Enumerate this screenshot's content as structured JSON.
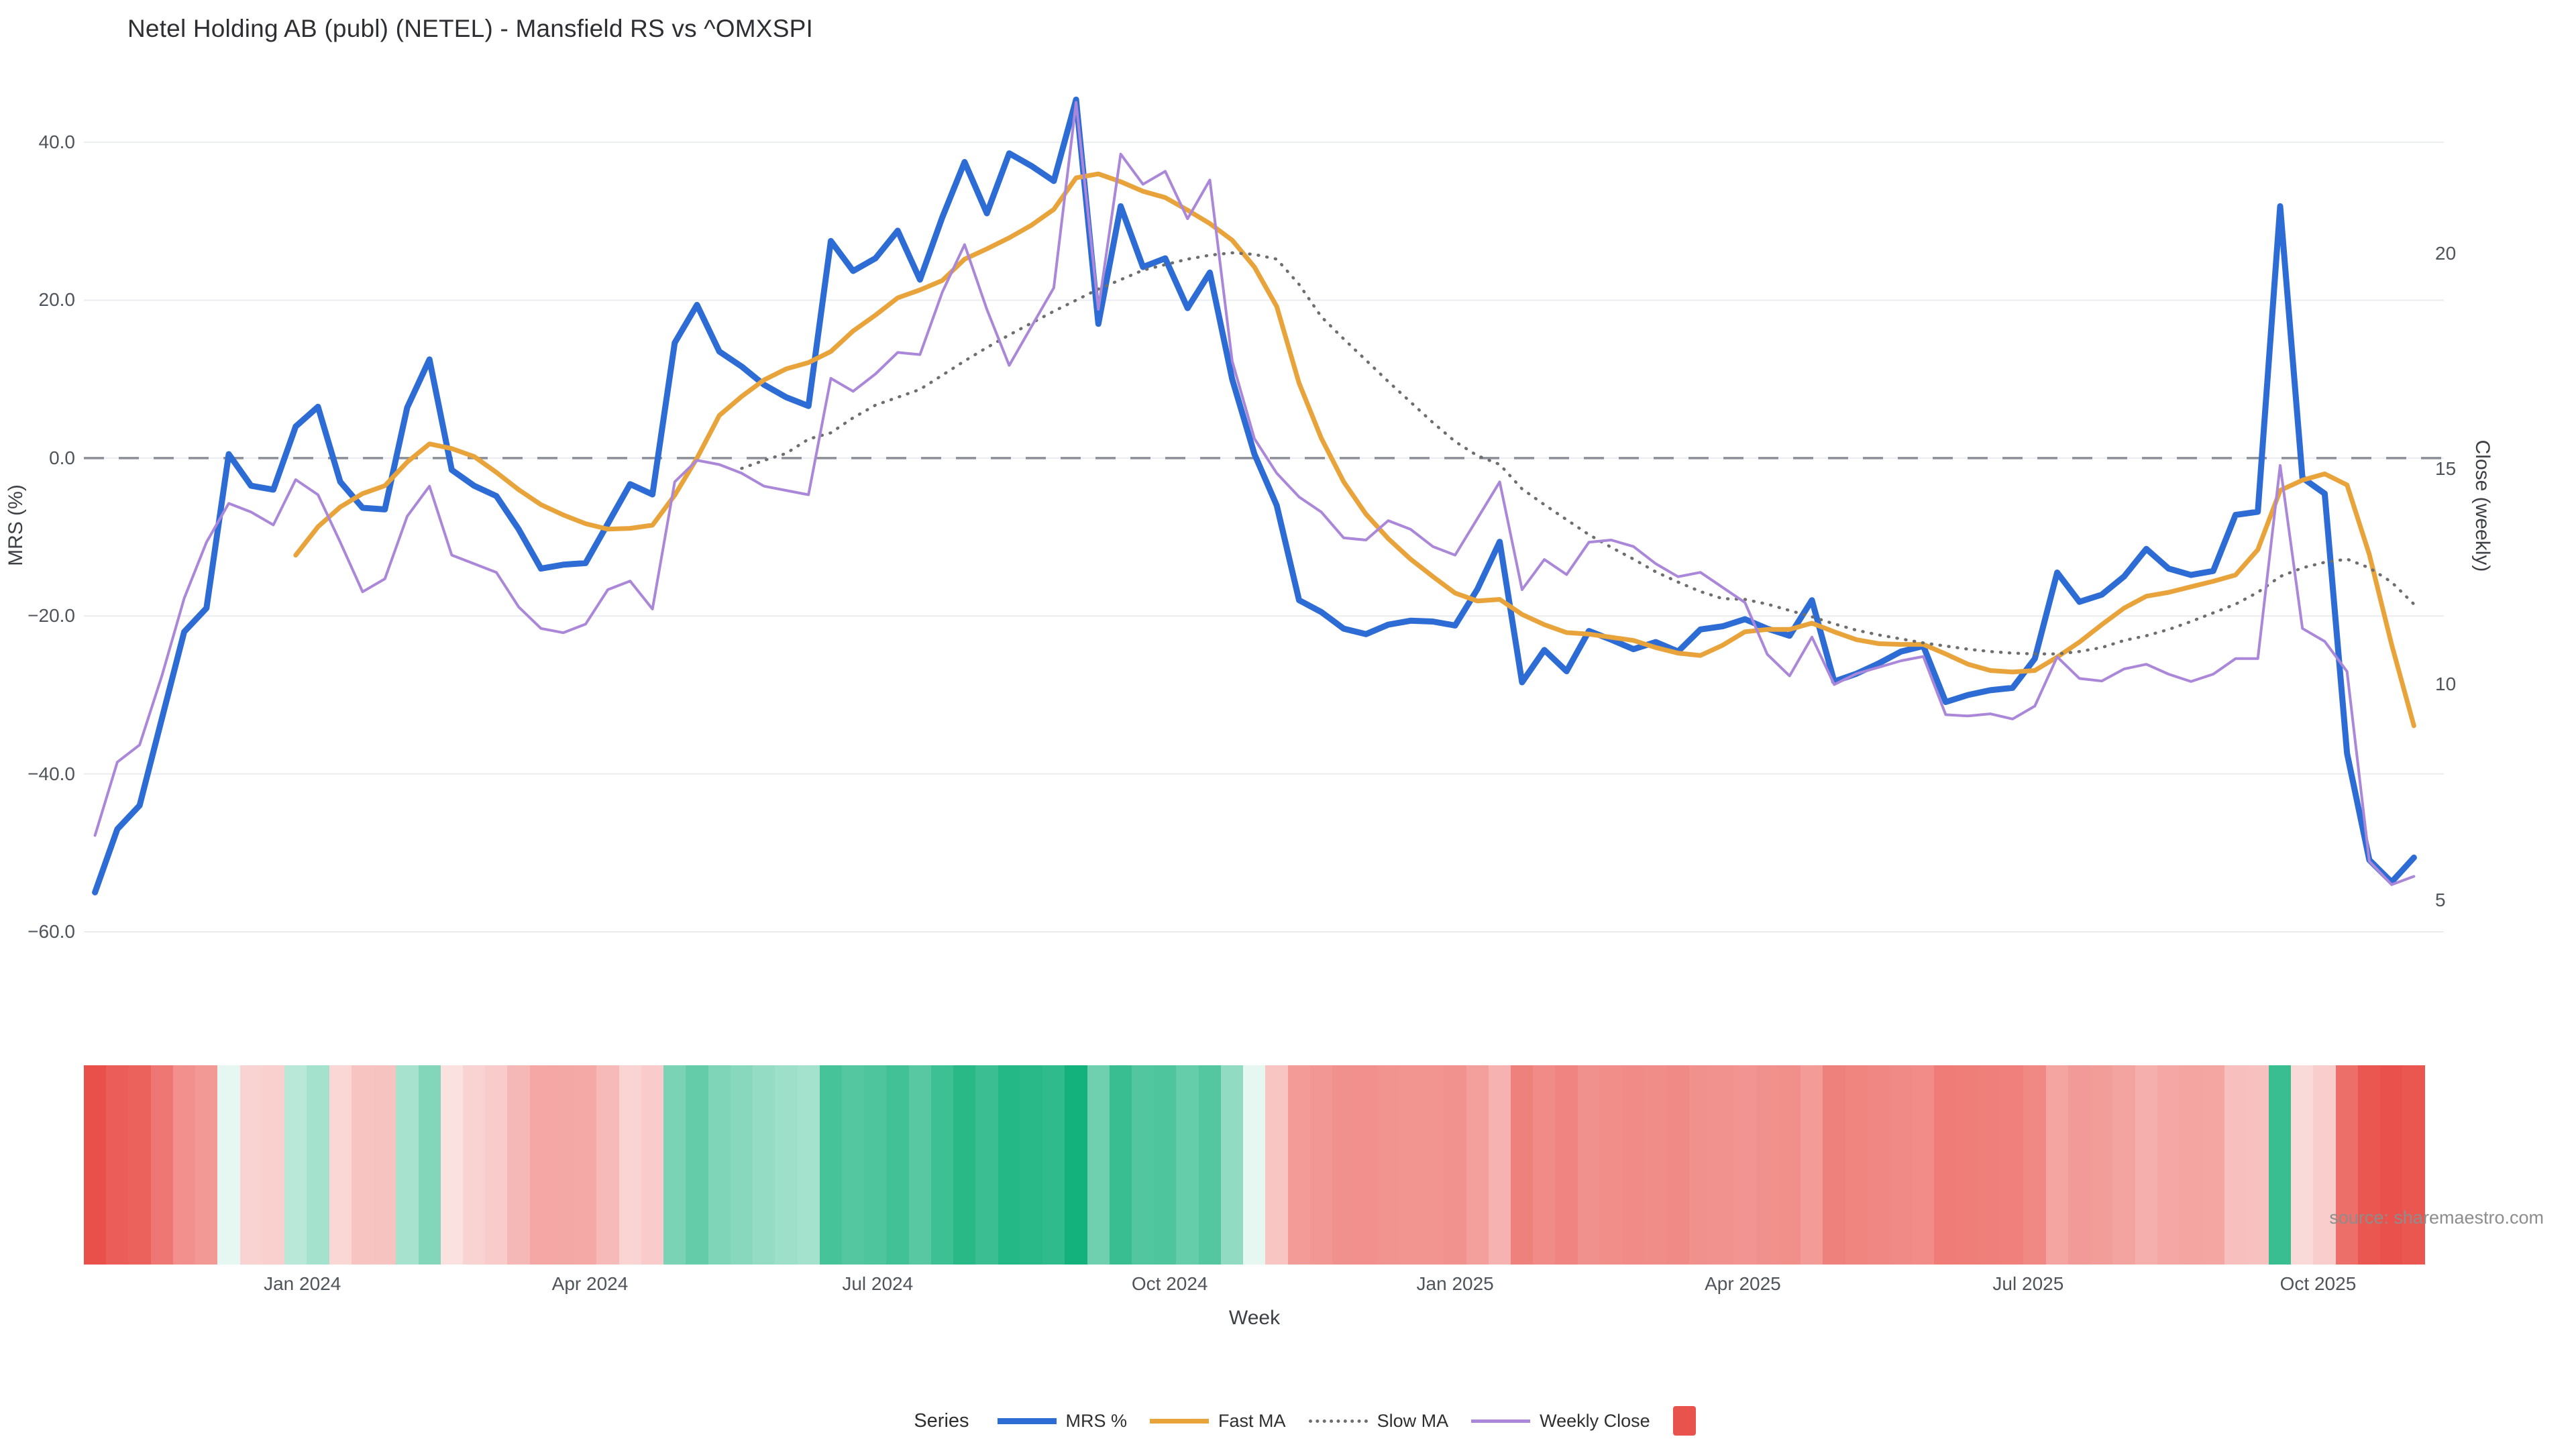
{
  "title": "Netel Holding AB (publ) (NETEL) - Mansfield RS vs ^OMXSPI",
  "source": "source: sharemaestro.com",
  "axes": {
    "x": {
      "title": "Week",
      "tick_labels": [
        "Jan 2024",
        "Apr 2024",
        "Jul 2024",
        "Oct 2024",
        "Jan 2025",
        "Apr 2025",
        "Jul 2025",
        "Oct 2025"
      ],
      "tick_weeks": [
        9.3,
        22.2,
        35.1,
        48.2,
        61.0,
        73.9,
        86.7,
        99.7
      ]
    },
    "left": {
      "title": "MRS (%)",
      "tick_labels": [
        "40.0",
        "20.0",
        "0.0",
        "−20.0",
        "−40.0",
        "−60.0"
      ],
      "tick_values": [
        40,
        20,
        0,
        -20,
        -40,
        -60
      ],
      "range": [
        -66.2,
        49.1
      ]
    },
    "right": {
      "title": "Close (weekly)",
      "tick_labels": [
        "20",
        "15",
        "10",
        "5"
      ],
      "tick_values": [
        20,
        15,
        10,
        5
      ],
      "range": [
        3.13,
        24.24
      ]
    }
  },
  "legend": {
    "title": "Series",
    "swatch_color": "#e9534e"
  },
  "colors": {
    "background": "#ffffff",
    "grid": "#eaecf0",
    "zero_line": "#8b8f98",
    "heat_pos": "#13b27c",
    "heat_neg": "#e9504a",
    "text": "#2f2f2f"
  },
  "chart_data": {
    "type": "line+heatmap",
    "x_unit": "week_index",
    "n_weeks": 105,
    "x_range_note": "weekly points, late Oct 2023 through early Nov 2025",
    "grid": true,
    "legend_position": "bottom-center",
    "series": [
      {
        "name": "MRS %",
        "axis": "left",
        "color": "#2e6cd5",
        "width": 9,
        "dash": "solid",
        "start_week": 0,
        "values": [
          -55,
          -47,
          -44,
          -33,
          -22,
          -19,
          0.5,
          -3.5,
          -4,
          4,
          6.5,
          -3,
          -6.3,
          -6.5,
          6.4,
          12.5,
          -1.5,
          -3.5,
          -4.8,
          -9,
          -14,
          -13.5,
          -13.3,
          -8.3,
          -3.3,
          -4.6,
          14.6,
          19.4,
          13.5,
          11.6,
          9.3,
          7.7,
          6.6,
          27.5,
          23.7,
          25.3,
          28.8,
          22.6,
          30.5,
          37.5,
          31,
          38.6,
          37,
          35.1,
          45.4,
          17,
          31.9,
          24.2,
          25.3,
          19,
          23.5,
          10,
          0.5,
          -6,
          -18,
          -19.5,
          -21.6,
          -22.3,
          -21.1,
          -20.6,
          -20.7,
          -21.2,
          -16.6,
          -10.6,
          -28.4,
          -24.3,
          -27,
          -21.9,
          -23,
          -24.2,
          -23.3,
          -24.5,
          -21.7,
          -21.3,
          -20.4,
          -21.6,
          -22.5,
          -18,
          -28.3,
          -27.3,
          -26,
          -24.5,
          -23.8,
          -30.9,
          -30,
          -29.4,
          -29.1,
          -25.4,
          -14.5,
          -18.2,
          -17.3,
          -15,
          -11.5,
          -14,
          -14.8,
          -14.3,
          -7.2,
          -6.8,
          31.9,
          -2.5,
          -4.5,
          -37.4,
          -50.9,
          -53.7,
          -50.6
        ]
      },
      {
        "name": "Fast MA",
        "axis": "left",
        "color": "#e8a33b",
        "width": 7,
        "dash": "solid",
        "start_week": 9,
        "values": [
          -12.3,
          -8.7,
          -6.2,
          -4.5,
          -3.5,
          -0.5,
          1.8,
          1.2,
          0.2,
          -1.8,
          -4,
          -5.9,
          -7.2,
          -8.3,
          -9,
          -8.9,
          -8.5,
          -4.7,
          0,
          5.4,
          7.8,
          9.9,
          11.3,
          12.1,
          13.5,
          16.1,
          18.1,
          20.3,
          21.3,
          22.5,
          25.2,
          26.5,
          27.9,
          29.5,
          31.5,
          35.5,
          36,
          35,
          33.8,
          33,
          31.4,
          29.7,
          27.6,
          24.2,
          19.2,
          9.5,
          2.5,
          -3,
          -7.1,
          -10.2,
          -12.8,
          -15,
          -17.1,
          -18.1,
          -17.9,
          -19.8,
          -21.1,
          -22.1,
          -22.3,
          -22.7,
          -23.1,
          -24,
          -24.7,
          -25,
          -23.7,
          -22,
          -21.7,
          -21.7,
          -20.9,
          -22,
          -23,
          -23.5,
          -23.6,
          -23.6,
          -24.8,
          -26.1,
          -26.9,
          -27.1,
          -26.9,
          -25.2,
          -23.3,
          -21.1,
          -19,
          -17.5,
          -17,
          -16.3,
          -15.6,
          -14.8,
          -11.6,
          -4.1,
          -2.8,
          -2,
          -3.4,
          -12.2,
          -23.6,
          -33.9
        ]
      },
      {
        "name": "Slow MA",
        "axis": "left",
        "color": "#6e6e6e",
        "width": 4.5,
        "dash": "dot",
        "start_week": 29,
        "values": [
          -1.3,
          -0.3,
          0.6,
          2.4,
          3.2,
          5.1,
          6.7,
          7.7,
          8.7,
          10.5,
          12.3,
          14,
          15.6,
          17.1,
          18.6,
          20,
          21.4,
          22.6,
          23.8,
          24.5,
          25.2,
          25.7,
          26,
          25.8,
          25.2,
          22,
          17.9,
          15.1,
          12.4,
          9.7,
          7.1,
          4.5,
          2.1,
          0.3,
          -0.8,
          -3.9,
          -5.9,
          -7.8,
          -9.7,
          -11.3,
          -12.8,
          -14.4,
          -15.7,
          -16.9,
          -17.8,
          -17.9,
          -18.5,
          -19.3,
          -20.1,
          -21,
          -21.8,
          -22.4,
          -22.9,
          -23.4,
          -23.8,
          -24.2,
          -24.5,
          -24.7,
          -24.8,
          -24.8,
          -24.5,
          -24,
          -23.1,
          -22.5,
          -21.7,
          -20.7,
          -19.6,
          -18.5,
          -17,
          -15,
          -13.9,
          -13.2,
          -12.8,
          -13.9,
          -15.7,
          -18.5
        ]
      },
      {
        "name": "Weekly Close",
        "axis": "right",
        "color": "#aa87d9",
        "width": 4,
        "dash": "solid",
        "start_week": 0,
        "values": [
          6.5,
          8.2,
          8.6,
          10.2,
          12,
          13.3,
          14.2,
          14,
          13.7,
          14.75,
          14.4,
          13.3,
          12.15,
          12.45,
          13.9,
          14.6,
          13,
          12.8,
          12.6,
          11.8,
          11.3,
          11.2,
          11.4,
          12.2,
          12.4,
          11.75,
          14.7,
          15.2,
          15.1,
          14.9,
          14.6,
          14.5,
          14.4,
          17.1,
          16.8,
          17.2,
          17.7,
          17.65,
          19.1,
          20.2,
          18.7,
          17.4,
          18.3,
          19.2,
          23.5,
          18.7,
          22.3,
          21.6,
          21.9,
          20.8,
          21.7,
          17.5,
          15.7,
          14.9,
          14.35,
          14,
          13.4,
          13.35,
          13.8,
          13.6,
          13.2,
          13,
          13.85,
          14.7,
          12.2,
          12.9,
          12.55,
          13.3,
          13.35,
          13.2,
          12.8,
          12.5,
          12.6,
          12.25,
          11.9,
          10.7,
          10.2,
          11.1,
          10,
          10.25,
          10.4,
          10.55,
          10.65,
          9.3,
          9.27,
          9.32,
          9.2,
          9.5,
          10.64,
          10.14,
          10.08,
          10.36,
          10.47,
          10.24,
          10.07,
          10.24,
          10.6,
          10.6,
          15.08,
          11.3,
          11,
          10.3,
          5.9,
          5.36,
          5.55
        ]
      }
    ],
    "heatmap": {
      "source_series": "MRS %",
      "neg_full_scale": 55,
      "pos_full_scale": 45
    }
  }
}
